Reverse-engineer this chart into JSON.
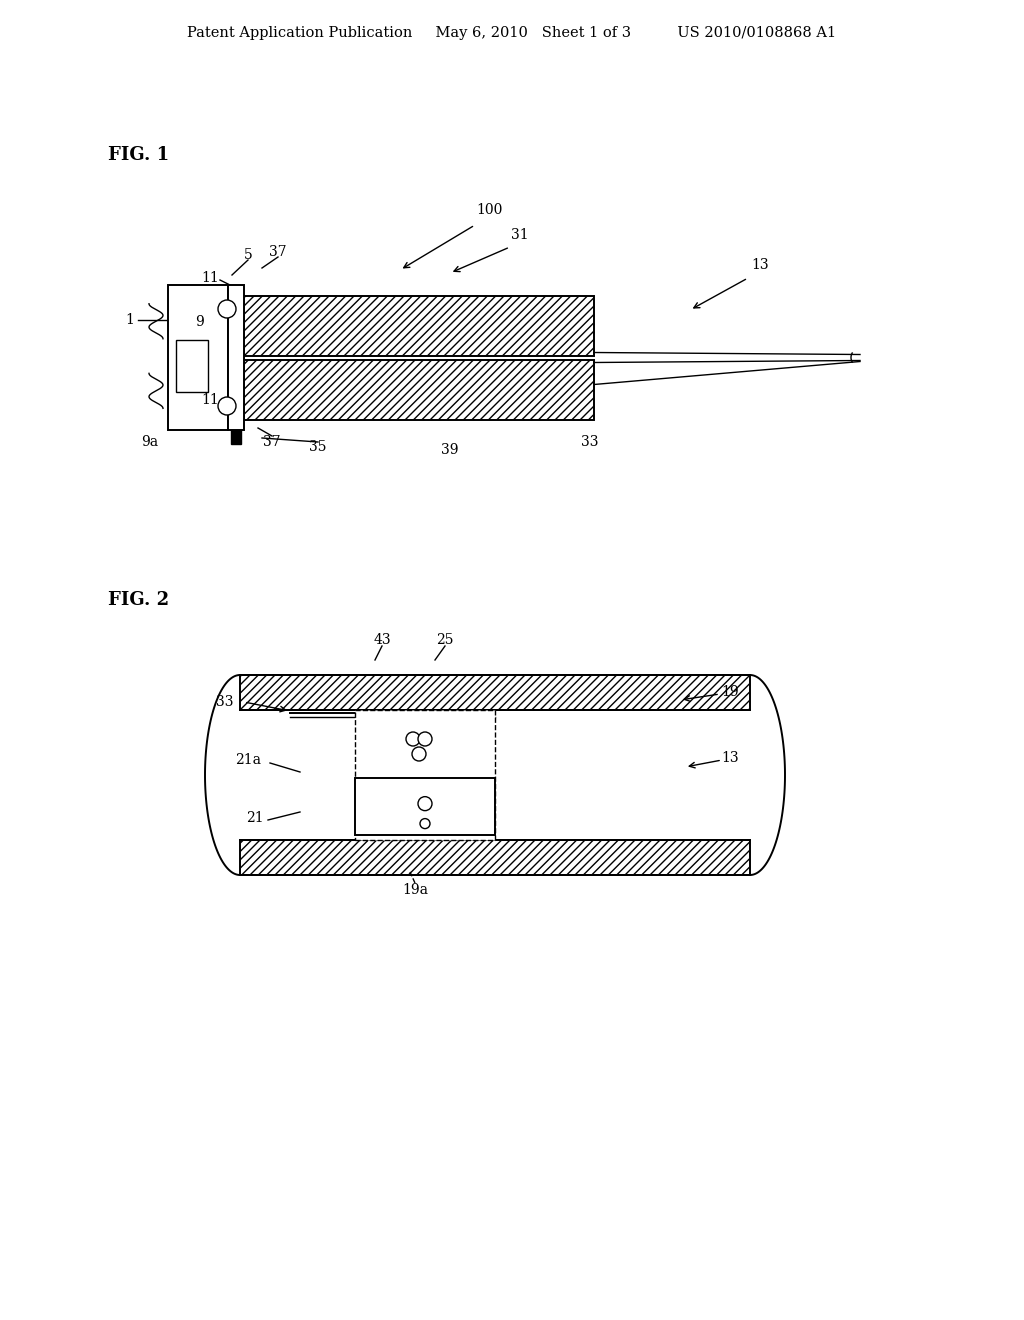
{
  "bg_color": "#ffffff",
  "line_color": "#000000",
  "header_text": "Patent Application Publication     May 6, 2010   Sheet 1 of 3          US 2010/0108868 A1",
  "fig1_label": "FIG. 1",
  "fig2_label": "FIG. 2",
  "font_size_header": 10.5,
  "font_size_fig": 13,
  "font_size_label": 10
}
